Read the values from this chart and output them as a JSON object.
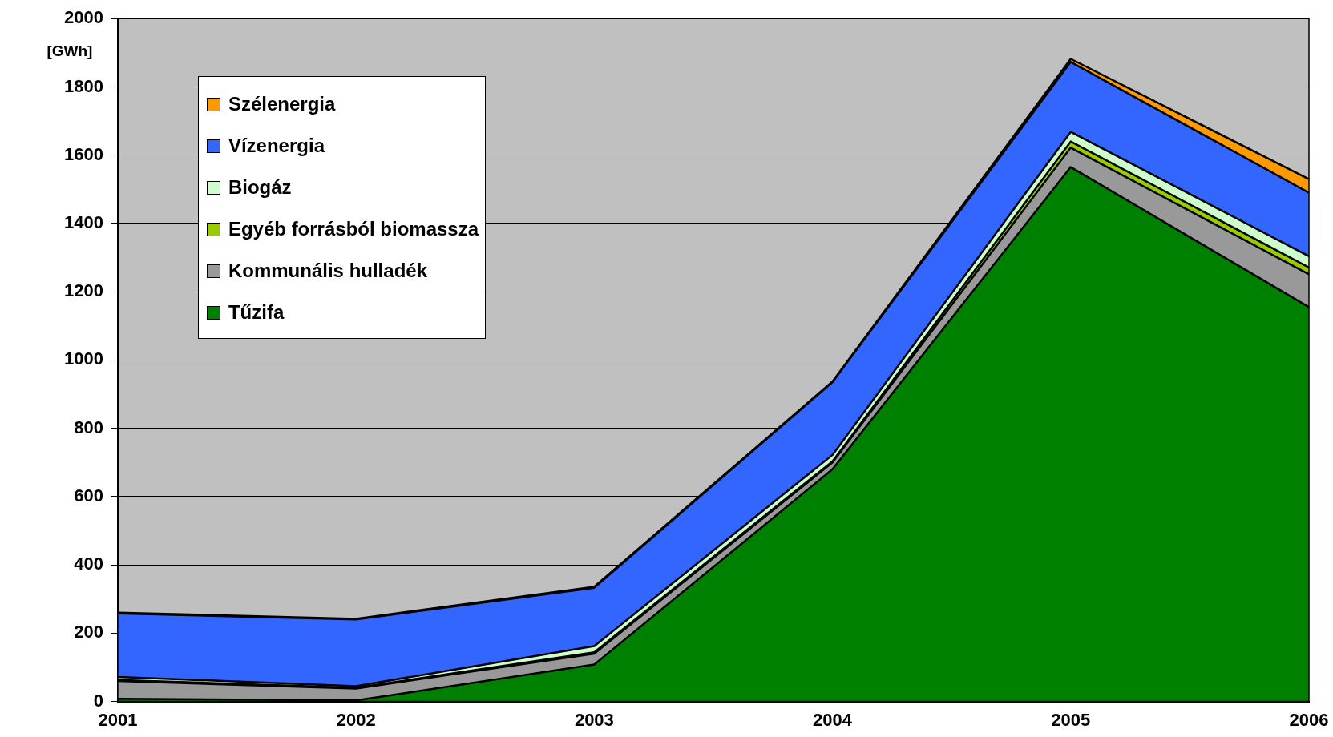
{
  "chart_data": {
    "type": "area",
    "stacked": true,
    "ylabel": "[GWh]",
    "categories": [
      "2001",
      "2002",
      "2003",
      "2004",
      "2005",
      "2006"
    ],
    "ylim": [
      0,
      2000
    ],
    "yticks": [
      0,
      200,
      400,
      600,
      800,
      1000,
      1200,
      1400,
      1600,
      1800,
      2000
    ],
    "grid": "y",
    "legend": "top left",
    "series": [
      {
        "name": "Tűzifa",
        "color": "#008000",
        "values": [
          8,
          3,
          108,
          680,
          1565,
          1155
        ]
      },
      {
        "name": "Kommunális hulladék",
        "color": "#999999",
        "values": [
          52,
          35,
          32,
          20,
          57,
          96
        ]
      },
      {
        "name": "Egyéb forrásból biomassza",
        "color": "#99cc00",
        "values": [
          3,
          2,
          4,
          3,
          18,
          20
        ]
      },
      {
        "name": "Biogáz",
        "color": "#ccffcc",
        "values": [
          9,
          5,
          18,
          19,
          28,
          33
        ]
      },
      {
        "name": "Vízenergia",
        "color": "#3366ff",
        "values": [
          186,
          195,
          171,
          213,
          205,
          186
        ]
      },
      {
        "name": "Szélenergia",
        "color": "#ff9900",
        "values": [
          2,
          2,
          3,
          2,
          9,
          40
        ]
      }
    ]
  }
}
